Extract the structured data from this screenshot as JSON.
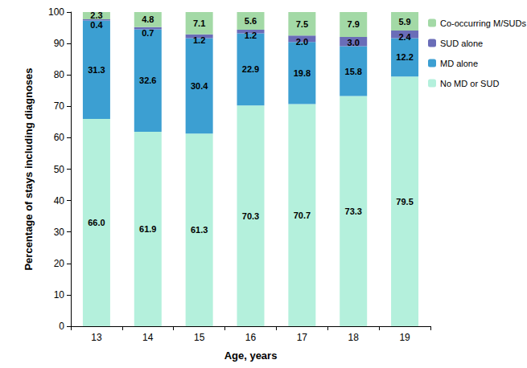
{
  "chart_data": {
    "type": "bar",
    "stacked": true,
    "data_labels": true,
    "grid": false,
    "legend": "right",
    "x_label": "Age, years",
    "y_label": "Percentage of stays including diagnoses",
    "categories": [
      "13",
      "14",
      "15",
      "16",
      "17",
      "18",
      "19"
    ],
    "ylim": [
      0,
      100
    ],
    "yticks": [
      0,
      10,
      20,
      30,
      40,
      50,
      60,
      70,
      80,
      90,
      100
    ],
    "series": [
      {
        "name": "No MD or SUD",
        "color": "#b4f0dc",
        "values": [
          66.0,
          61.9,
          61.3,
          70.3,
          70.7,
          73.3,
          79.5
        ],
        "value_labels": [
          "66.0",
          "61.9",
          "61.3",
          "70.3",
          "70.7",
          "73.3",
          "79.5"
        ]
      },
      {
        "name": "MD alone",
        "color": "#3c9fd2",
        "values": [
          31.3,
          32.6,
          30.4,
          22.9,
          19.8,
          15.8,
          12.2
        ],
        "value_labels": [
          "31.3",
          "32.6",
          "30.4",
          "22.9",
          "19.8",
          "15.8",
          "12.2"
        ]
      },
      {
        "name": "SUD alone",
        "color": "#6a6db8",
        "values": [
          0.4,
          0.7,
          1.2,
          1.2,
          2.0,
          3.0,
          2.4
        ],
        "value_labels": [
          "0.4",
          "0.7",
          "1.2",
          "1.2",
          "2.0",
          "3.0",
          "2.4"
        ]
      },
      {
        "name": "Co-occurring M/SUDs",
        "color": "#a3d9a6",
        "values": [
          2.3,
          4.8,
          7.1,
          5.6,
          7.5,
          7.9,
          5.9
        ],
        "value_labels": [
          "2.3",
          "4.8",
          "7.1",
          "5.6",
          "7.5",
          "7.9",
          "5.9"
        ]
      }
    ]
  }
}
